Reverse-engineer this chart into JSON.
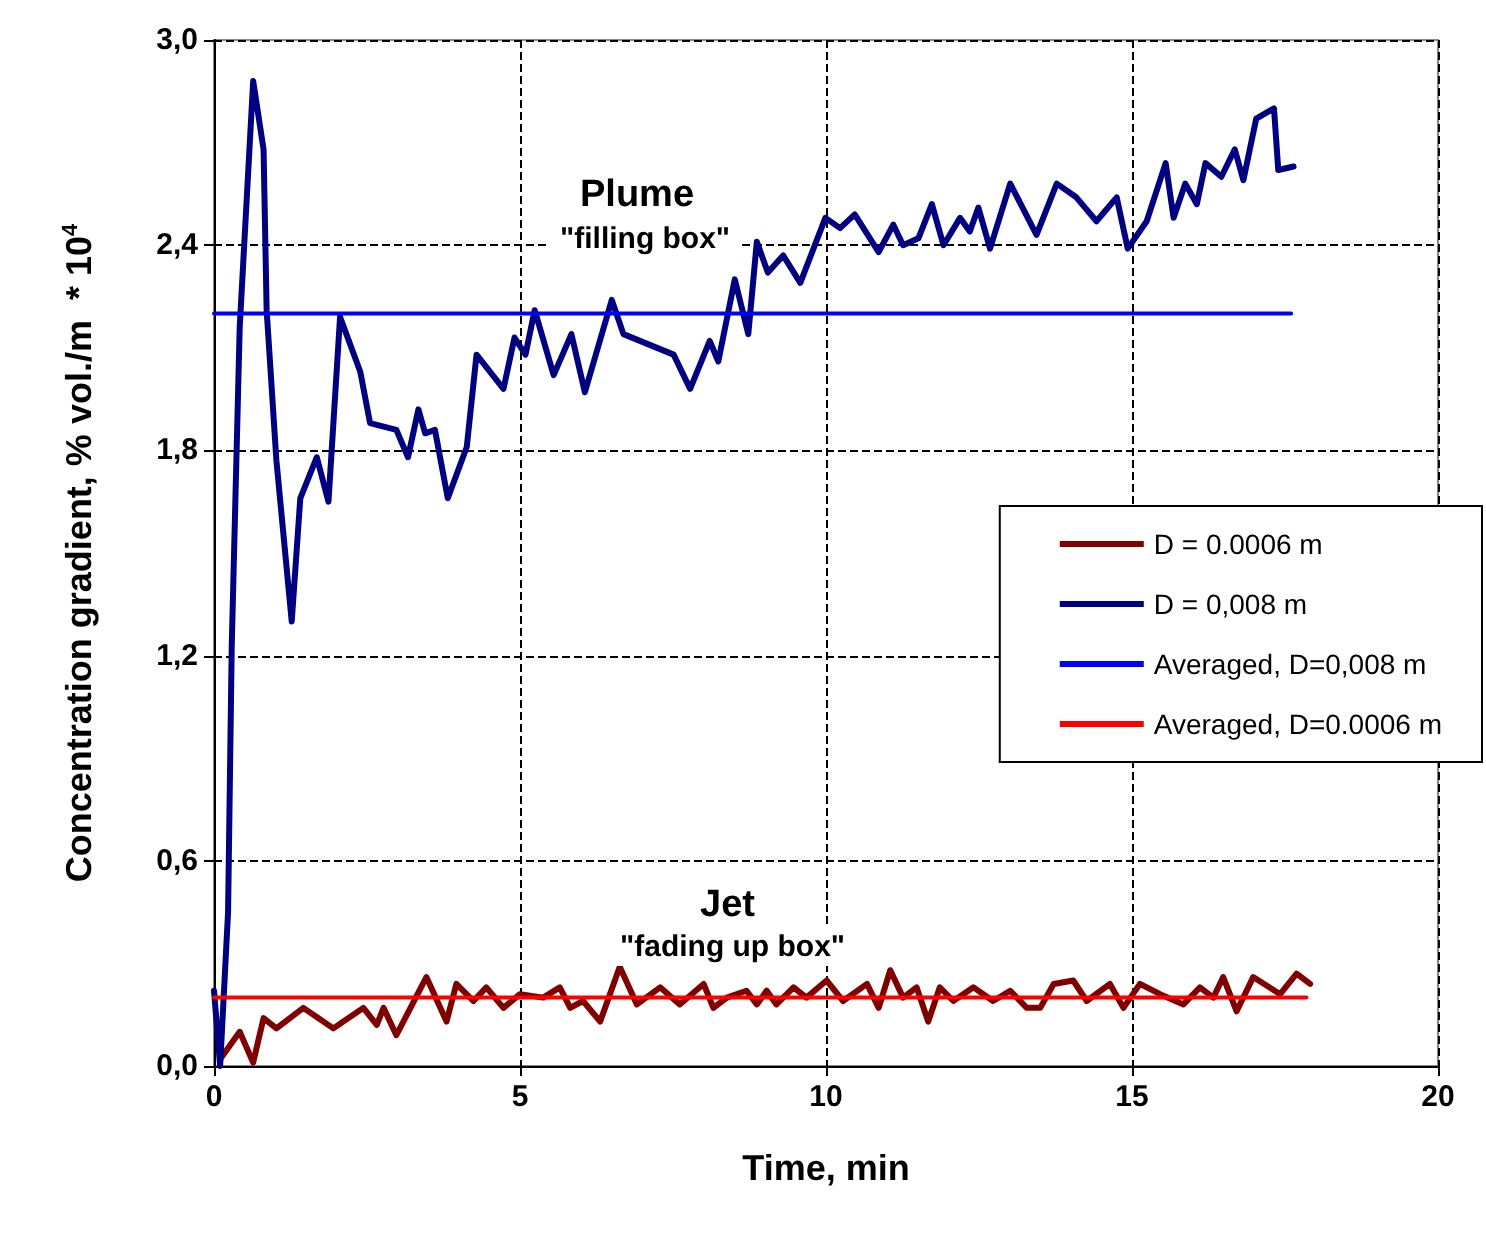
{
  "chart_data": {
    "type": "line",
    "xlabel": "Time, min",
    "ylabel": "Concentration gradient, % vol./m  * 10$^{4}$",
    "xlim": [
      0,
      20
    ],
    "xticks": [
      0,
      5,
      10,
      15,
      20
    ],
    "ylim": [
      0,
      3
    ],
    "yticks": [
      {
        "value": 0,
        "label": "0,0"
      },
      {
        "value": 0.6,
        "label": "0,6"
      },
      {
        "value": 1.2,
        "label": "1,2"
      },
      {
        "value": 1.8,
        "label": "1,8"
      },
      {
        "value": 2.4,
        "label": "2,4"
      },
      {
        "value": 3,
        "label": "3,0"
      }
    ],
    "grid": true,
    "legend": "right",
    "marker": "none",
    "line_style": "solid",
    "annotations": [
      "Plume",
      "\"filling box\"",
      "Jet",
      "\"fading up box\""
    ],
    "series": [
      {
        "name": "D = 0.0006 m",
        "color": "#800000",
        "x": [
          0.1,
          0.42,
          0.64,
          0.81,
          1.02,
          1.46,
          1.95,
          2.44,
          2.66,
          2.77,
          2.98,
          3.47,
          3.8,
          3.96,
          4.24,
          4.45,
          4.73,
          5.0,
          5.38,
          5.65,
          5.82,
          6.03,
          6.31,
          6.63,
          6.91,
          7.29,
          7.61,
          8.0,
          8.16,
          8.38,
          8.7,
          8.87,
          9.03,
          9.19,
          9.47,
          9.68,
          10.01,
          10.28,
          10.67,
          10.86,
          11.05,
          11.26,
          11.48,
          11.67,
          11.86,
          12.08,
          12.41,
          12.73,
          13.01,
          13.28,
          13.5,
          13.72,
          14.04,
          14.26,
          14.64,
          14.86,
          15.13,
          15.46,
          15.84,
          16.11,
          16.33,
          16.49,
          16.71,
          16.98,
          17.42,
          17.69,
          17.91
        ],
        "values": [
          0.02,
          0.1,
          0.01,
          0.14,
          0.11,
          0.17,
          0.11,
          0.17,
          0.12,
          0.17,
          0.09,
          0.26,
          0.13,
          0.24,
          0.19,
          0.23,
          0.17,
          0.21,
          0.2,
          0.23,
          0.17,
          0.19,
          0.13,
          0.29,
          0.18,
          0.23,
          0.18,
          0.24,
          0.17,
          0.2,
          0.22,
          0.18,
          0.22,
          0.18,
          0.23,
          0.2,
          0.25,
          0.19,
          0.24,
          0.17,
          0.28,
          0.2,
          0.23,
          0.13,
          0.23,
          0.19,
          0.23,
          0.19,
          0.22,
          0.17,
          0.17,
          0.24,
          0.25,
          0.19,
          0.24,
          0.17,
          0.24,
          0.21,
          0.18,
          0.23,
          0.2,
          0.26,
          0.16,
          0.26,
          0.21,
          0.27,
          0.24
        ]
      },
      {
        "name": "D = 0,008 m",
        "color": "#000080",
        "x": [
          0,
          0.1,
          0.23,
          0.29,
          0.42,
          0.64,
          0.81,
          0.86,
          1.02,
          1.27,
          1.41,
          1.68,
          1.87,
          2.06,
          2.39,
          2.55,
          2.98,
          3.17,
          3.34,
          3.45,
          3.61,
          3.82,
          4.13,
          4.29,
          4.73,
          4.91,
          5.09,
          5.24,
          5.55,
          5.84,
          6.06,
          6.5,
          6.69,
          7.51,
          7.78,
          8.1,
          8.24,
          8.51,
          8.73,
          8.87,
          9.05,
          9.3,
          9.58,
          9.99,
          10.23,
          10.47,
          10.86,
          11.1,
          11.26,
          11.51,
          11.73,
          11.92,
          12.19,
          12.35,
          12.49,
          12.68,
          13.01,
          13.44,
          13.77,
          14.09,
          14.42,
          14.75,
          14.93,
          15.24,
          15.55,
          15.68,
          15.87,
          16.06,
          16.2,
          16.46,
          16.68,
          16.82,
          17.03,
          17.32,
          17.39,
          17.64
        ],
        "values": [
          0.22,
          0.0,
          0.45,
          1.23,
          2.16,
          2.88,
          2.68,
          2.21,
          1.77,
          1.3,
          1.66,
          1.78,
          1.65,
          2.19,
          2.03,
          1.88,
          1.86,
          1.78,
          1.92,
          1.85,
          1.86,
          1.66,
          1.81,
          2.08,
          1.98,
          2.13,
          2.08,
          2.21,
          2.02,
          2.14,
          1.97,
          2.24,
          2.14,
          2.08,
          1.98,
          2.12,
          2.06,
          2.3,
          2.14,
          2.41,
          2.32,
          2.37,
          2.29,
          2.48,
          2.45,
          2.49,
          2.38,
          2.46,
          2.4,
          2.42,
          2.52,
          2.4,
          2.48,
          2.44,
          2.51,
          2.39,
          2.58,
          2.43,
          2.58,
          2.54,
          2.47,
          2.54,
          2.39,
          2.47,
          2.64,
          2.48,
          2.58,
          2.52,
          2.64,
          2.6,
          2.68,
          2.59,
          2.77,
          2.8,
          2.62,
          2.63
        ]
      },
      {
        "name": "Averaged, D=0,008 m",
        "color": "#0000ff",
        "x": [
          0,
          17.6
        ],
        "values": [
          2.2,
          2.2
        ]
      },
      {
        "name": "Averaged, D=0.0006 m",
        "color": "#ff0000",
        "x": [
          0,
          17.85
        ],
        "values": [
          0.2,
          0.2
        ]
      }
    ]
  }
}
